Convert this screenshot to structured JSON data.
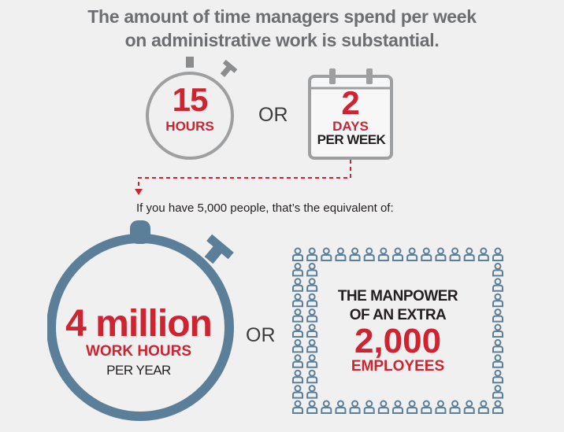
{
  "headline": {
    "line1": "The amount of time managers spend per week",
    "line2": "on administrative work is substantial."
  },
  "stopwatch_small": {
    "number": "15",
    "unit": "HOURS",
    "icon": "stopwatch-icon"
  },
  "or_top": "OR",
  "calendar": {
    "number": "2",
    "unit": "DAYS",
    "sub": "PER WEEK",
    "icon": "calendar-icon"
  },
  "equivalent_text": "If you have 5,000 people, that’s the equivalent of:",
  "stopwatch_large": {
    "number": "4 million",
    "unit": "WORK HOURS",
    "sub": "PER YEAR",
    "icon": "stopwatch-icon"
  },
  "or_bottom": "OR",
  "manpower": {
    "line1": "THE MANPOWER",
    "line2": "OF AN EXTRA",
    "number": "2,000",
    "unit": "EMPLOYEES",
    "icon": "people-icon"
  },
  "colors": {
    "red": "#cf2331",
    "gray": "#6d6e71",
    "blue": "#5b7f99",
    "background": "#f0f0f0"
  }
}
